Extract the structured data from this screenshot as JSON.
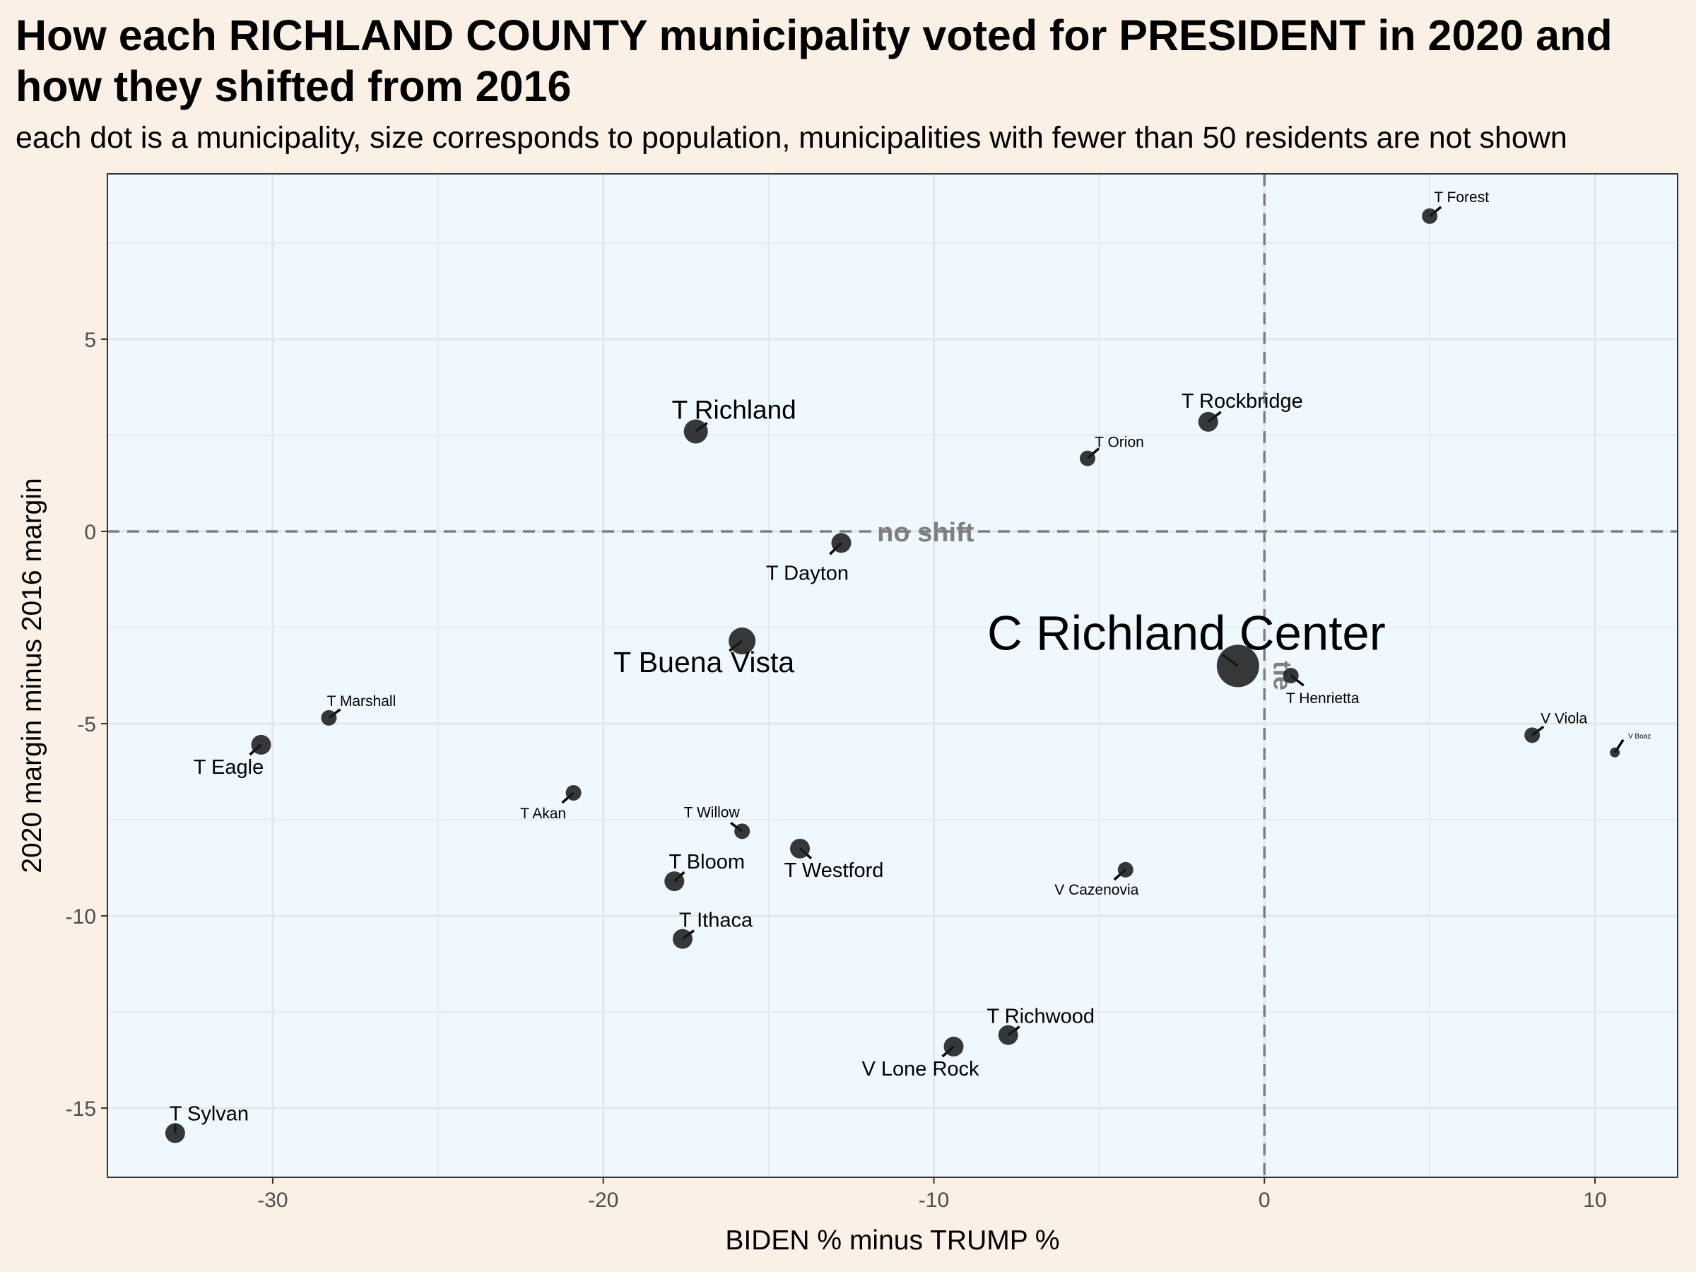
{
  "title": "How each RICHLAND COUNTY municipality voted for PRESIDENT in 2020 and how they shifted from 2016",
  "subtitle": "each dot is a municipality, size corresponds to population, municipalities with fewer than 50 residents are not shown",
  "colors": {
    "page_background": "#faf0e6",
    "panel_background": "#f0f8ff",
    "grid": "#e6e6e6",
    "point": "#1a1a1a",
    "reference_line": "#7f7f7f"
  },
  "chart_data": {
    "type": "scatter",
    "xlabel": "BIDEN % minus TRUMP %",
    "ylabel": "2020 margin minus 2016 margin",
    "xlim": [
      -35,
      12.5
    ],
    "ylim": [
      -16.8,
      9.3
    ],
    "x_ticks": [
      -30,
      -20,
      -10,
      0,
      10
    ],
    "y_ticks": [
      -15,
      -10,
      -5,
      0,
      5
    ],
    "grid": true,
    "reference_lines": [
      {
        "orientation": "horizontal",
        "value": 0,
        "label": "no shift"
      },
      {
        "orientation": "vertical",
        "value": 0,
        "label": "tie"
      }
    ],
    "points": [
      {
        "label": "T Forest",
        "x": 5.0,
        "y": 8.2,
        "size": "small"
      },
      {
        "label": "T Rockbridge",
        "x": -1.7,
        "y": 2.85,
        "size": "medium"
      },
      {
        "label": "T Orion",
        "x": -5.35,
        "y": 1.9,
        "size": "small"
      },
      {
        "label": "T Richland",
        "x": -17.2,
        "y": 2.6,
        "size": "large"
      },
      {
        "label": "T Dayton",
        "x": -12.8,
        "y": -0.3,
        "size": "medium"
      },
      {
        "label": "T Buena Vista",
        "x": -15.8,
        "y": -2.85,
        "size": "very large"
      },
      {
        "label": "C Richland Center",
        "x": -0.8,
        "y": -3.5,
        "size": "largest"
      },
      {
        "label": "T Henrietta",
        "x": 0.8,
        "y": -3.75,
        "size": "small"
      },
      {
        "label": "V Viola",
        "x": 8.1,
        "y": -5.3,
        "size": "small"
      },
      {
        "label": "V Boaz",
        "x": 10.6,
        "y": -5.75,
        "size": "tiny"
      },
      {
        "label": "T Marshall",
        "x": -28.3,
        "y": -4.85,
        "size": "small"
      },
      {
        "label": "T Eagle",
        "x": -30.35,
        "y": -5.55,
        "size": "medium"
      },
      {
        "label": "T Akan",
        "x": -20.9,
        "y": -6.8,
        "size": "small"
      },
      {
        "label": "T Willow",
        "x": -15.8,
        "y": -7.8,
        "size": "small"
      },
      {
        "label": "T Westford",
        "x": -14.05,
        "y": -8.25,
        "size": "medium"
      },
      {
        "label": "T Bloom",
        "x": -17.85,
        "y": -9.1,
        "size": "medium"
      },
      {
        "label": "T Ithaca",
        "x": -17.6,
        "y": -10.6,
        "size": "medium"
      },
      {
        "label": "V Cazenovia",
        "x": -4.2,
        "y": -8.8,
        "size": "small"
      },
      {
        "label": "T Richwood",
        "x": -7.75,
        "y": -13.1,
        "size": "medium"
      },
      {
        "label": "V Lone Rock",
        "x": -9.4,
        "y": -13.4,
        "size": "medium"
      },
      {
        "label": "T Sylvan",
        "x": -32.95,
        "y": -15.65,
        "size": "medium"
      }
    ]
  }
}
